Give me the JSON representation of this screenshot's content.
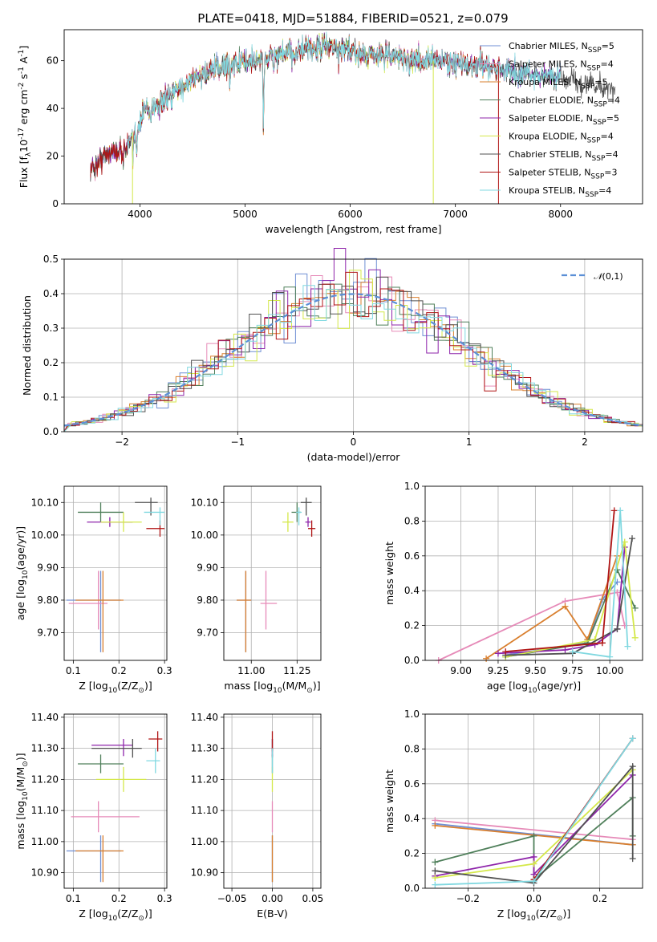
{
  "title": "PLATE=0418, MJD=51884, FIBERID=0521, z=0.079",
  "models": [
    {
      "name": "Chabrier MILES, N$_{SSP}$=5",
      "color": "#6f8fd4"
    },
    {
      "name": "Salpeter MILES, N$_{SSP}$=4",
      "color": "#e68ab8"
    },
    {
      "name": "Kroupa MILES, N$_{SSP}$=5",
      "color": "#d97f2e"
    },
    {
      "name": "Chabrier ELODIE, N$_{SSP}$=4",
      "color": "#4f7f5a"
    },
    {
      "name": "Salpeter ELODIE, N$_{SSP}$=5",
      "color": "#8e24aa"
    },
    {
      "name": "Kroupa ELODIE, N$_{SSP}$=4",
      "color": "#d4e84a"
    },
    {
      "name": "Chabrier STELIB, N$_{SSP}$=4",
      "color": "#505050"
    },
    {
      "name": "Salpeter STELIB, N$_{SSP}$=3",
      "color": "#b01515"
    },
    {
      "name": "Kroupa STELIB, N$_{SSP}$=4",
      "color": "#80d8e0"
    }
  ],
  "chart_data": [
    {
      "id": "spectrum",
      "type": "line",
      "xlabel": "wavelength [Angstrom, rest frame]",
      "ylabel": "Flux [f$_\\lambda$10$^{-17}$ erg cm$^{-2}$ s$^{-1}$ A$^{-1}$]",
      "xlim": [
        3280,
        8780
      ],
      "ylim": [
        0,
        73
      ],
      "xticks": [
        4000,
        5000,
        6000,
        7000,
        8000
      ],
      "yticks": [
        0,
        20,
        40,
        60
      ],
      "grid": false,
      "legend": "top-right",
      "data_range": [
        3530,
        8520
      ],
      "continuum": [
        [
          3530,
          14
        ],
        [
          3700,
          22
        ],
        [
          3850,
          22
        ],
        [
          3950,
          28
        ],
        [
          4050,
          40
        ],
        [
          4200,
          42
        ],
        [
          4350,
          48
        ],
        [
          4500,
          52
        ],
        [
          4700,
          56
        ],
        [
          4900,
          59
        ],
        [
          5100,
          60
        ],
        [
          5300,
          62
        ],
        [
          5500,
          64
        ],
        [
          5800,
          66
        ],
        [
          6100,
          63
        ],
        [
          6400,
          62
        ],
        [
          6700,
          60
        ],
        [
          6900,
          60
        ],
        [
          7100,
          58
        ],
        [
          7300,
          58
        ],
        [
          7500,
          56
        ],
        [
          7800,
          54
        ],
        [
          8100,
          52
        ],
        [
          8300,
          50
        ],
        [
          8520,
          48
        ]
      ],
      "absorption": [
        [
          3934,
          -8
        ],
        [
          3968,
          -6
        ],
        [
          4101,
          -5
        ],
        [
          4227,
          -4
        ],
        [
          4304,
          -6
        ],
        [
          4861,
          -6
        ],
        [
          5175,
          -28
        ],
        [
          5270,
          -4
        ],
        [
          5890,
          -6
        ],
        [
          6563,
          -5
        ],
        [
          7600,
          -4
        ],
        [
          8200,
          -3
        ]
      ]
    },
    {
      "id": "residuals",
      "type": "histogram",
      "xlabel": "(data-model)/error",
      "ylabel": "Normed distribution",
      "xlim": [
        -2.5,
        2.5
      ],
      "ylim": [
        0,
        0.5
      ],
      "xticks": [
        -2,
        -1,
        0,
        1,
        2
      ],
      "yticks": [
        0.0,
        0.1,
        0.2,
        0.3,
        0.4,
        0.5
      ],
      "grid": true,
      "legend": "top-right",
      "reference": "$\\mathcal{N}(0,1)$",
      "bin_width": 0.1
    },
    {
      "id": "age_Z",
      "type": "scatter",
      "xlabel": "Z [log$_{10}$(Z/Z$_\\odot$)]",
      "ylabel": "age  [log$_{10}$($age/yr$)]",
      "xlim": [
        0.08,
        0.305
      ],
      "ylim": [
        9.615,
        10.15
      ],
      "xticks": [
        0.1,
        0.2,
        0.3
      ],
      "yticks": [
        9.7,
        9.8,
        9.9,
        10.0,
        10.1
      ],
      "grid": true,
      "points": [
        {
          "x": 0.16,
          "y": 9.8,
          "xe": [
            0.075,
            0.045
          ],
          "ye": [
            0.16,
            0.09
          ]
        },
        {
          "x": 0.155,
          "y": 9.79,
          "xe": [
            0.065,
            0.02
          ],
          "ye": [
            0.08,
            0.1
          ]
        },
        {
          "x": 0.165,
          "y": 9.8,
          "xe": [
            0.06,
            0.045
          ],
          "ye": [
            0.16,
            0.09
          ]
        },
        {
          "x": 0.16,
          "y": 10.07,
          "xe": [
            0.05,
            0.05
          ],
          "ye": [
            0.03,
            0.03
          ]
        },
        {
          "x": 0.18,
          "y": 10.04,
          "xe": [
            0.05,
            0.05
          ],
          "ye": [
            0.015,
            0.015
          ]
        },
        {
          "x": 0.21,
          "y": 10.04,
          "xe": [
            0.05,
            0.04
          ],
          "ye": [
            0.03,
            0.03
          ]
        },
        {
          "x": 0.27,
          "y": 10.1,
          "xe": [
            0.035,
            0.015
          ],
          "ye": [
            0.04,
            0.015
          ]
        },
        {
          "x": 0.29,
          "y": 10.02,
          "xe": [
            0.03,
            0.01
          ],
          "ye": [
            0.025,
            0.025
          ]
        },
        {
          "x": 0.29,
          "y": 10.07,
          "xe": [
            0.035,
            0.01
          ],
          "ye": [
            0.04,
            0.015
          ]
        }
      ]
    },
    {
      "id": "age_mass",
      "type": "scatter",
      "xlabel": "mass [log$_{10}$($M/M_\\odot$)]",
      "ylabel": "",
      "xlim": [
        10.85,
        11.38
      ],
      "ylim": [
        9.615,
        10.15
      ],
      "xticks": [
        11.0,
        11.25
      ],
      "yticks": [
        9.7,
        9.8,
        9.9,
        10.0,
        10.1
      ],
      "grid": true,
      "points": [
        {
          "x": 10.97,
          "y": 9.8,
          "xe": [
            0.05,
            0.03
          ],
          "ye": [
            0.16,
            0.09
          ]
        },
        {
          "x": 11.08,
          "y": 9.79,
          "xe": [
            0.03,
            0.06
          ],
          "ye": [
            0.08,
            0.1
          ]
        },
        {
          "x": 10.97,
          "y": 9.8,
          "xe": [
            0.05,
            0.03
          ],
          "ye": [
            0.16,
            0.09
          ]
        },
        {
          "x": 11.25,
          "y": 10.07,
          "xe": [
            0.03,
            0.02
          ],
          "ye": [
            0.03,
            0.03
          ]
        },
        {
          "x": 11.31,
          "y": 10.04,
          "xe": [
            0.015,
            0.015
          ],
          "ye": [
            0.015,
            0.015
          ]
        },
        {
          "x": 11.2,
          "y": 10.04,
          "xe": [
            0.03,
            0.03
          ],
          "ye": [
            0.03,
            0.03
          ]
        },
        {
          "x": 11.3,
          "y": 10.1,
          "xe": [
            0.03,
            0.03
          ],
          "ye": [
            0.04,
            0.015
          ]
        },
        {
          "x": 11.33,
          "y": 10.02,
          "xe": [
            0.02,
            0.02
          ],
          "ye": [
            0.025,
            0.025
          ]
        },
        {
          "x": 11.26,
          "y": 10.07,
          "xe": [
            0.015,
            0.015
          ],
          "ye": [
            0.04,
            0.015
          ]
        }
      ]
    },
    {
      "id": "weight_age",
      "type": "line",
      "xlabel": "age  [log$_{10}$($age/yr$)]",
      "ylabel": "mass weight",
      "xlim": [
        8.76,
        10.22
      ],
      "ylim": [
        0,
        1
      ],
      "xticks": [
        9.0,
        9.25,
        9.5,
        9.75,
        10.0
      ],
      "yticks": [
        0.0,
        0.2,
        0.4,
        0.6,
        0.8,
        1.0
      ],
      "grid": true,
      "series": [
        {
          "x": [
            9.3,
            9.85,
            9.95,
            10.05
          ],
          "y": [
            0.03,
            0.1,
            0.35,
            0.45
          ]
        },
        {
          "x": [
            8.85,
            9.7,
            10.05,
            10.1
          ],
          "y": [
            0.0,
            0.34,
            0.39,
            0.2
          ]
        },
        {
          "x": [
            9.17,
            9.7,
            9.85,
            10.05
          ],
          "y": [
            0.01,
            0.31,
            0.12,
            0.6
          ]
        },
        {
          "x": [
            9.3,
            9.85,
            10.05,
            10.17
          ],
          "y": [
            0.02,
            0.1,
            0.52,
            0.3
          ]
        },
        {
          "x": [
            9.25,
            9.7,
            9.9,
            10.05,
            10.1
          ],
          "y": [
            0.04,
            0.06,
            0.09,
            0.18,
            0.65
          ]
        },
        {
          "x": [
            9.3,
            9.9,
            10.1,
            10.17
          ],
          "y": [
            0.02,
            0.12,
            0.68,
            0.13
          ]
        },
        {
          "x": [
            9.3,
            9.75,
            10.05,
            10.15
          ],
          "y": [
            0.03,
            0.04,
            0.18,
            0.7
          ]
        },
        {
          "x": [
            9.3,
            9.95,
            10.03
          ],
          "y": [
            0.05,
            0.1,
            0.86
          ]
        },
        {
          "x": [
            9.75,
            10.0,
            10.07,
            10.12
          ],
          "y": [
            0.05,
            0.02,
            0.86,
            0.08
          ]
        }
      ]
    },
    {
      "id": "mass_Z",
      "type": "scatter",
      "xlabel": "Z [log$_{10}$(Z/Z$_\\odot$)]",
      "ylabel": "mass [log$_{10}$($M/M_\\odot$)]",
      "xlim": [
        0.08,
        0.305
      ],
      "ylim": [
        10.85,
        11.41
      ],
      "xticks": [
        0.1,
        0.2,
        0.3
      ],
      "yticks": [
        10.9,
        11.0,
        11.1,
        11.2,
        11.3,
        11.4
      ],
      "grid": true,
      "points": [
        {
          "x": 0.16,
          "y": 10.97,
          "xe": [
            0.075,
            0.045
          ],
          "ye": [
            0.1,
            0.05
          ]
        },
        {
          "x": 0.155,
          "y": 11.08,
          "xe": [
            0.06,
            0.09
          ],
          "ye": [
            0.05,
            0.05
          ]
        },
        {
          "x": 0.165,
          "y": 10.97,
          "xe": [
            0.06,
            0.045
          ],
          "ye": [
            0.1,
            0.05
          ]
        },
        {
          "x": 0.16,
          "y": 11.25,
          "xe": [
            0.05,
            0.05
          ],
          "ye": [
            0.03,
            0.03
          ]
        },
        {
          "x": 0.21,
          "y": 11.31,
          "xe": [
            0.07,
            0.02
          ],
          "ye": [
            0.035,
            0.02
          ]
        },
        {
          "x": 0.21,
          "y": 11.2,
          "xe": [
            0.06,
            0.05
          ],
          "ye": [
            0.04,
            0.04
          ]
        },
        {
          "x": 0.23,
          "y": 11.3,
          "xe": [
            0.09,
            0.02
          ],
          "ye": [
            0.03,
            0.03
          ]
        },
        {
          "x": 0.285,
          "y": 11.33,
          "xe": [
            0.02,
            0.01
          ],
          "ye": [
            0.04,
            0.025
          ]
        },
        {
          "x": 0.28,
          "y": 11.26,
          "xe": [
            0.02,
            0.01
          ],
          "ye": [
            0.04,
            0.04
          ]
        }
      ]
    },
    {
      "id": "mass_EBV",
      "type": "scatter",
      "xlabel": "E(B-V)",
      "ylabel": "",
      "xlim": [
        -0.06,
        0.06
      ],
      "ylim": [
        10.85,
        11.41
      ],
      "xticks": [
        -0.05,
        0.0,
        0.05
      ],
      "yticks": [
        10.9,
        11.0,
        11.1,
        11.2,
        11.3,
        11.4
      ],
      "grid": true,
      "points": [
        {
          "x": 0,
          "y": 10.97,
          "xe": [
            0,
            0
          ],
          "ye": [
            0.1,
            0.05
          ]
        },
        {
          "x": 0,
          "y": 11.08,
          "xe": [
            0,
            0
          ],
          "ye": [
            0.05,
            0.05
          ]
        },
        {
          "x": 0,
          "y": 10.97,
          "xe": [
            0,
            0
          ],
          "ye": [
            0.1,
            0.05
          ]
        },
        {
          "x": 0,
          "y": 11.25,
          "xe": [
            0,
            0
          ],
          "ye": [
            0.03,
            0.03
          ]
        },
        {
          "x": 0,
          "y": 11.31,
          "xe": [
            0,
            0
          ],
          "ye": [
            0.035,
            0.02
          ]
        },
        {
          "x": 0,
          "y": 11.2,
          "xe": [
            0,
            0
          ],
          "ye": [
            0.04,
            0.04
          ]
        },
        {
          "x": 0,
          "y": 11.3,
          "xe": [
            0,
            0
          ],
          "ye": [
            0.03,
            0.03
          ]
        },
        {
          "x": 0,
          "y": 11.33,
          "xe": [
            0,
            0
          ],
          "ye": [
            0.04,
            0.025
          ]
        },
        {
          "x": 0,
          "y": 11.26,
          "xe": [
            0,
            0
          ],
          "ye": [
            0.04,
            0.04
          ]
        }
      ]
    },
    {
      "id": "weight_Z",
      "type": "line",
      "xlabel": "Z [log$_{10}$(Z/Z$_\\odot$)]",
      "ylabel": "mass weight",
      "xlim": [
        -0.33,
        0.33
      ],
      "ylim": [
        0,
        1
      ],
      "xticks": [
        -0.2,
        0.0,
        0.2
      ],
      "yticks": [
        0.0,
        0.2,
        0.4,
        0.6,
        0.8,
        1.0
      ],
      "grid": true,
      "series": [
        {
          "x": [
            -0.3,
            0.3
          ],
          "y": [
            0.37,
            0.25
          ]
        },
        {
          "x": [
            -0.3,
            0.3
          ],
          "y": [
            0.39,
            0.28
          ]
        },
        {
          "x": [
            -0.3,
            0.3
          ],
          "y": [
            0.36,
            0.25
          ]
        },
        {
          "x": [
            -0.3,
            0.0,
            0.0,
            0.3,
            0.3
          ],
          "y": [
            0.15,
            0.3,
            0.05,
            0.52,
            0.3
          ]
        },
        {
          "x": [
            -0.3,
            0.0,
            0.0,
            0.3
          ],
          "y": [
            0.07,
            0.18,
            0.08,
            0.65
          ]
        },
        {
          "x": [
            -0.3,
            0.0,
            0.3
          ],
          "y": [
            0.06,
            0.14,
            0.68
          ]
        },
        {
          "x": [
            -0.3,
            0.0,
            0.3,
            0.3
          ],
          "y": [
            0.1,
            0.03,
            0.7,
            0.17
          ]
        },
        {
          "x": [
            0.0,
            0.3
          ],
          "y": [
            0.05,
            0.86
          ]
        },
        {
          "x": [
            -0.3,
            0.0,
            0.3
          ],
          "y": [
            0.02,
            0.04,
            0.86
          ]
        }
      ]
    }
  ]
}
